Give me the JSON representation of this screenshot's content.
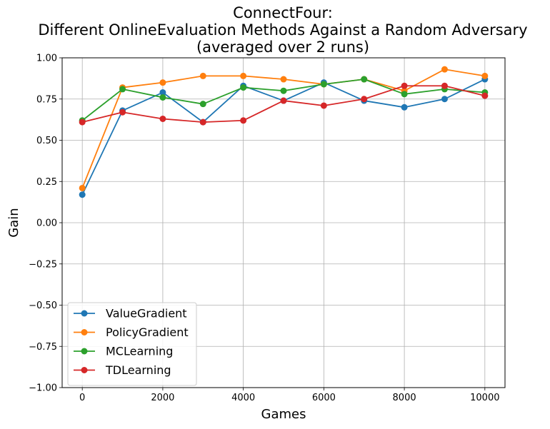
{
  "chart_data": {
    "type": "line",
    "title_lines": [
      "ConnectFour:",
      "Different OnlineEvaluation Methods Against a Random Adversary",
      "(averaged over 2 runs)"
    ],
    "xlabel": "Games",
    "ylabel": "Gain",
    "xlim": [
      -500,
      10500
    ],
    "ylim": [
      -1.0,
      1.0
    ],
    "x_ticks": [
      0,
      2000,
      4000,
      6000,
      8000,
      10000
    ],
    "x_tick_labels": [
      "0",
      "2000",
      "4000",
      "6000",
      "8000",
      "10000"
    ],
    "y_ticks": [
      -1.0,
      -0.75,
      -0.5,
      -0.25,
      0.0,
      0.25,
      0.5,
      0.75,
      1.0
    ],
    "y_tick_labels": [
      "−1.00",
      "−0.75",
      "−0.50",
      "−0.25",
      "0.00",
      "0.25",
      "0.50",
      "0.75",
      "1.00"
    ],
    "grid": true,
    "legend_position": "lower-left",
    "x": [
      0,
      1000,
      2000,
      3000,
      4000,
      5000,
      6000,
      7000,
      8000,
      9000,
      10000
    ],
    "series": [
      {
        "name": "ValueGradient",
        "color": "#1f77b4",
        "values": [
          0.17,
          0.68,
          0.79,
          0.61,
          0.83,
          0.74,
          0.85,
          0.74,
          0.7,
          0.75,
          0.87
        ]
      },
      {
        "name": "PolicyGradient",
        "color": "#ff7f0e",
        "values": [
          0.21,
          0.82,
          0.85,
          0.89,
          0.89,
          0.87,
          0.84,
          0.87,
          0.8,
          0.93,
          0.89
        ]
      },
      {
        "name": "MCLearning",
        "color": "#2ca02c",
        "values": [
          0.62,
          0.81,
          0.76,
          0.72,
          0.82,
          0.8,
          0.84,
          0.87,
          0.78,
          0.81,
          0.79
        ]
      },
      {
        "name": "TDLearning",
        "color": "#d62728",
        "values": [
          0.61,
          0.67,
          0.63,
          0.61,
          0.62,
          0.74,
          0.71,
          0.75,
          0.83,
          0.83,
          0.77
        ]
      }
    ]
  }
}
